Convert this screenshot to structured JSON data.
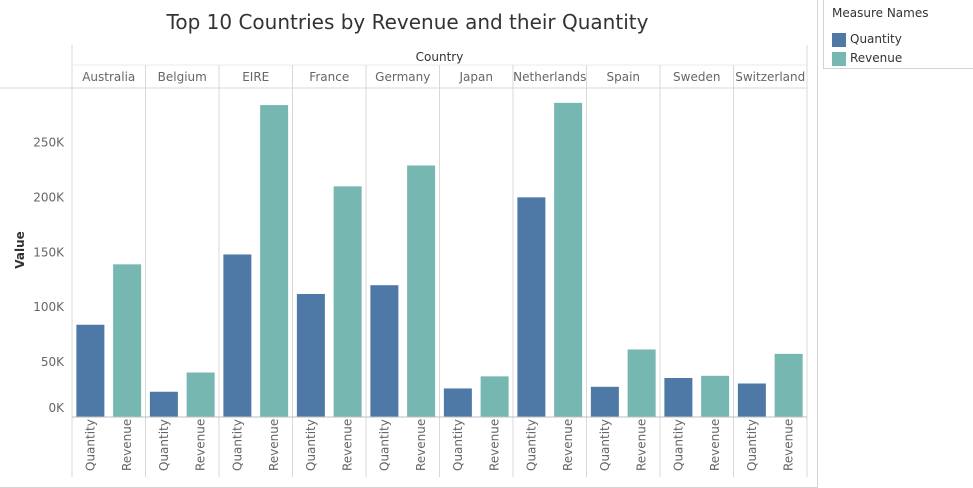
{
  "chart_data": {
    "type": "bar",
    "title": "Top 10 Countries by Revenue and their Quantity",
    "column_header": "Country",
    "ylabel": "Value",
    "ylim": [
      0,
      295000
    ],
    "yticks": [
      0,
      50000,
      100000,
      150000,
      200000,
      250000
    ],
    "ytick_labels": [
      "0K",
      "50K",
      "100K",
      "150K",
      "200K",
      "250K"
    ],
    "categories": [
      "Australia",
      "Belgium",
      "EIRE",
      "France",
      "Germany",
      "Japan",
      "Netherlands",
      "Spain",
      "Sweden",
      "Switzerland"
    ],
    "measure_labels": [
      "Quantity",
      "Revenue"
    ],
    "series": [
      {
        "name": "Quantity",
        "color": "#4e79a7",
        "values": [
          84000,
          23000,
          148000,
          112000,
          120000,
          26000,
          200000,
          27500,
          35500,
          30500
        ]
      },
      {
        "name": "Revenue",
        "color": "#76b7b2",
        "values": [
          139000,
          40500,
          284000,
          210000,
          229000,
          37000,
          286000,
          61500,
          37500,
          57500
        ]
      }
    ],
    "grid": false,
    "legend_position": "top-right"
  },
  "legend": {
    "title": "Measure Names",
    "items": [
      {
        "label": "Quantity",
        "color": "#4e79a7"
      },
      {
        "label": "Revenue",
        "color": "#76b7b2"
      }
    ]
  }
}
